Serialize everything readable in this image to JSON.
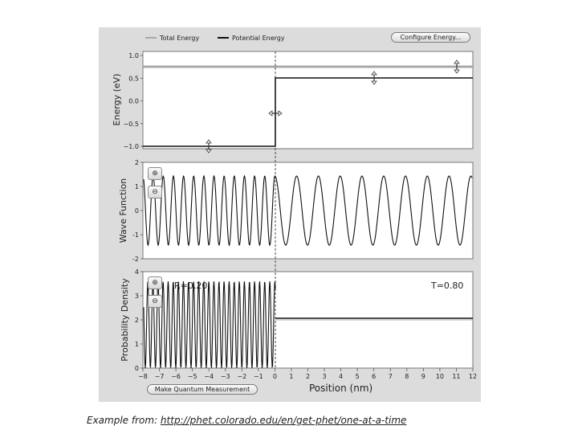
{
  "legend": {
    "total_energy": "Total Energy",
    "potential_energy": "Potential Energy"
  },
  "buttons": {
    "configure_energy": "Configure Energy...",
    "make_measurement": "Make Quantum Measurement"
  },
  "energy_plot": {
    "ylabel": "Energy (eV)",
    "yticks": [
      "1.0",
      "0.5",
      "0.0",
      "−0.5",
      "−1.0"
    ],
    "total_energy": 0.8,
    "potential": [
      {
        "x_start": -8,
        "x_end": 0,
        "value": -1.0
      },
      {
        "x_start": 0,
        "x_end": 12,
        "value": 0.5
      }
    ]
  },
  "wave_plot": {
    "ylabel": "Wave Function",
    "yticks": [
      "2",
      "1",
      "0",
      "-1",
      "-2"
    ],
    "ylim": [
      -2,
      2
    ]
  },
  "density_plot": {
    "ylabel": "Probability Density",
    "yticks": [
      "4",
      "3",
      "2",
      "1",
      "0"
    ],
    "ylim": [
      0,
      4
    ],
    "reflection": "R=0.20",
    "transmission": "T=0.80",
    "transmitted_density": 2.0
  },
  "x_axis": {
    "label": "Position (nm)",
    "ticks": [
      "−8",
      "−7",
      "−6",
      "−5",
      "−4",
      "−3",
      "−2",
      "−1",
      "0",
      "1",
      "2",
      "3",
      "4",
      "5",
      "6",
      "7",
      "8",
      "9",
      "10",
      "11",
      "12"
    ],
    "range": [
      -8,
      12
    ]
  },
  "caption": {
    "prefix": "Example from: ",
    "link": "http://phet.colorado.edu/en/get-phet/one-at-a-time"
  }
}
